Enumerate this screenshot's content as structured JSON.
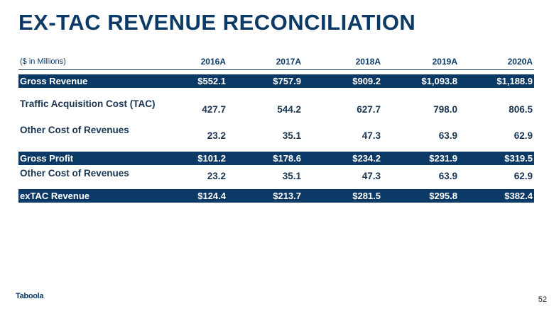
{
  "title": "EX-TAC REVENUE RECONCILIATION",
  "table": {
    "unit_label": "($ in Millions)",
    "columns": [
      "2016A",
      "2017A",
      "2018A",
      "2019A",
      "2020A"
    ],
    "rows": [
      {
        "label": "Gross Revenue",
        "values": [
          "$552.1",
          "$757.9",
          "$909.2",
          "$1,093.8",
          "$1,188.9"
        ],
        "highlighted": true
      },
      {
        "label": "Traffic Acquisition Cost (TAC)",
        "values": [
          "427.7",
          "544.2",
          "627.7",
          "798.0",
          "806.5"
        ],
        "highlighted": false
      },
      {
        "label": "Other Cost of Revenues",
        "values": [
          "23.2",
          "35.1",
          "47.3",
          "63.9",
          "62.9"
        ],
        "highlighted": false
      },
      {
        "label": "Gross Profit",
        "values": [
          "$101.2",
          "$178.6",
          "$234.2",
          "$231.9",
          "$319.5"
        ],
        "highlighted": true
      },
      {
        "label": "Other Cost of Revenues",
        "values": [
          "23.2",
          "35.1",
          "47.3",
          "63.9",
          "62.9"
        ],
        "highlighted": false
      },
      {
        "label": "exTAC Revenue",
        "values": [
          "$124.4",
          "$213.7",
          "$281.5",
          "$295.8",
          "$382.4"
        ],
        "highlighted": true
      }
    ]
  },
  "logo": "Taboola",
  "page_number": "52",
  "colors": {
    "accent": "#0c3a66",
    "band_text": "#ffffff"
  }
}
